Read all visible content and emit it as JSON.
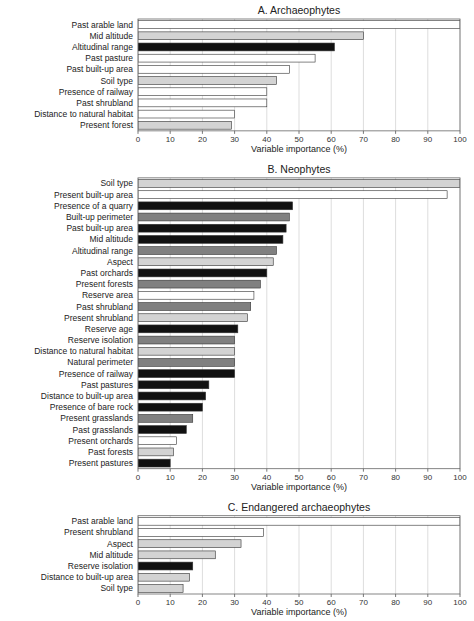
{
  "chart_data": [
    {
      "type": "bar",
      "orientation": "horizontal",
      "title": "A. Archaeophytes",
      "categories": [
        "Past arable land",
        "Mid altitude",
        "Altitudinal range",
        "Past pasture",
        "Past built-up area",
        "Soil type",
        "Presence of railway",
        "Past shrubland",
        "Distance to natural habitat",
        "Present forest"
      ],
      "values": [
        100,
        70,
        61,
        55,
        47,
        43,
        40,
        40,
        30,
        29
      ],
      "colors": [
        "#ffffff",
        "#d3d3d3",
        "#111111",
        "#ffffff",
        "#ffffff",
        "#d3d3d3",
        "#ffffff",
        "#ffffff",
        "#ffffff",
        "#d3d3d3"
      ],
      "xlabel": "Variable importance (%)",
      "xlim": [
        0,
        100
      ],
      "xticks": [
        0,
        10,
        20,
        30,
        40,
        50,
        60,
        70,
        80,
        90,
        100
      ],
      "grid": true
    },
    {
      "type": "bar",
      "orientation": "horizontal",
      "title": "B. Neophytes",
      "categories": [
        "Soil type",
        "Present built-up area",
        "Presence of a quarry",
        "Built-up perimeter",
        "Past built-up area",
        "Mid altitude",
        "Altitudinal range",
        "Aspect",
        "Past orchards",
        "Present forests",
        "Reserve area",
        "Past shrubland",
        "Present shrubland",
        "Reserve age",
        "Reserve isolation",
        "Distance to natural habitat",
        "Natural perimeter",
        "Presence of railway",
        "Past pastures",
        "Distance to built-up area",
        "Presence of bare rock",
        "Present grasslands",
        "Past grasslands",
        "Present orchards",
        "Past forests",
        "Present pastures"
      ],
      "values": [
        100,
        96,
        48,
        47,
        46,
        45,
        43,
        42,
        40,
        38,
        36,
        35,
        34,
        31,
        30,
        30,
        30,
        30,
        22,
        21,
        20,
        17,
        15,
        12,
        11,
        10
      ],
      "colors": [
        "#d3d3d3",
        "#ffffff",
        "#111111",
        "#808080",
        "#111111",
        "#111111",
        "#808080",
        "#d3d3d3",
        "#111111",
        "#808080",
        "#ffffff",
        "#808080",
        "#d3d3d3",
        "#111111",
        "#808080",
        "#d3d3d3",
        "#808080",
        "#111111",
        "#111111",
        "#111111",
        "#111111",
        "#808080",
        "#111111",
        "#ffffff",
        "#d3d3d3",
        "#111111"
      ],
      "xlabel": "Variable importance (%)",
      "xlim": [
        0,
        100
      ],
      "xticks": [
        0,
        10,
        20,
        30,
        40,
        50,
        60,
        70,
        80,
        90,
        100
      ],
      "grid": true
    },
    {
      "type": "bar",
      "orientation": "horizontal",
      "title": "C. Endangered archaeophytes",
      "categories": [
        "Past arable land",
        "Present shrubland",
        "Aspect",
        "Mid altitude",
        "Reserve isolation",
        "Distance to built-up area",
        "Soil type"
      ],
      "values": [
        100,
        39,
        32,
        24,
        17,
        16,
        14
      ],
      "colors": [
        "#ffffff",
        "#ffffff",
        "#d3d3d3",
        "#d3d3d3",
        "#111111",
        "#d3d3d3",
        "#d3d3d3"
      ],
      "xlabel": "Variable importance (%)",
      "xlim": [
        0,
        100
      ],
      "xticks": [
        0,
        10,
        20,
        30,
        40,
        50,
        60,
        70,
        80,
        90,
        100
      ],
      "grid": true
    }
  ]
}
